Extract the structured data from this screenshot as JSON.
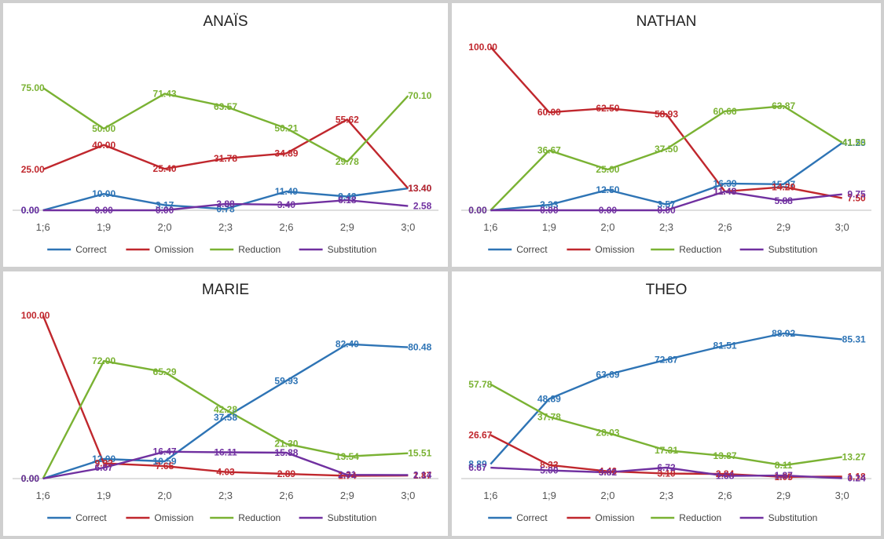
{
  "chart_data": [
    {
      "type": "line",
      "title": "ANAÏS",
      "categories": [
        "1;6",
        "1;9",
        "2;0",
        "2;3",
        "2;6",
        "2;9",
        "3;0"
      ],
      "ylim": [
        0,
        100
      ],
      "grid": false,
      "legend_position": "bottom",
      "series": [
        {
          "name": "Correct",
          "color": "#2e74b5",
          "values": [
            0.0,
            10.0,
            3.17,
            0.78,
            11.49,
            8.43,
            13.4
          ]
        },
        {
          "name": "Omission",
          "color": "#c0272d",
          "values": [
            25.0,
            40.0,
            25.4,
            31.78,
            34.89,
            55.62,
            13.4
          ]
        },
        {
          "name": "Reduction",
          "color": "#7ab233",
          "values": [
            75.0,
            50.0,
            71.43,
            63.57,
            50.21,
            29.78,
            70.1
          ]
        },
        {
          "name": "Substitution",
          "color": "#7030a0",
          "values": [
            0.0,
            0.0,
            0.0,
            3.88,
            3.4,
            6.18,
            2.58
          ]
        }
      ]
    },
    {
      "type": "line",
      "title": "NATHAN",
      "categories": [
        "1;6",
        "1;9",
        "2;0",
        "2;3",
        "2;6",
        "2;9",
        "3;0"
      ],
      "ylim": [
        0,
        100
      ],
      "grid": false,
      "legend_position": "bottom",
      "series": [
        {
          "name": "Correct",
          "color": "#2e74b5",
          "values": [
            0.0,
            3.33,
            12.5,
            3.57,
            16.39,
            15.97,
            41.25
          ]
        },
        {
          "name": "Omission",
          "color": "#c0272d",
          "values": [
            100.0,
            60.0,
            62.5,
            58.93,
            11.48,
            14.29,
            7.5
          ]
        },
        {
          "name": "Reduction",
          "color": "#7ab233",
          "values": [
            0.0,
            36.67,
            25.0,
            37.5,
            60.66,
            63.87,
            41.5
          ]
        },
        {
          "name": "Substitution",
          "color": "#7030a0",
          "values": [
            0.0,
            0.0,
            0.0,
            0.0,
            11.48,
            5.88,
            9.75
          ]
        }
      ]
    },
    {
      "type": "line",
      "title": "MARIE",
      "categories": [
        "1;6",
        "1;9",
        "2;0",
        "2;3",
        "2;6",
        "2;9",
        "3;0"
      ],
      "ylim": [
        0,
        100
      ],
      "grid": false,
      "legend_position": "bottom",
      "series": [
        {
          "name": "Correct",
          "color": "#2e74b5",
          "values": [
            0.0,
            12.0,
            10.59,
            37.58,
            59.93,
            82.4,
            80.48
          ]
        },
        {
          "name": "Omission",
          "color": "#c0272d",
          "values": [
            100.0,
            9.33,
            7.65,
            4.03,
            2.89,
            1.74,
            1.87
          ]
        },
        {
          "name": "Reduction",
          "color": "#7ab233",
          "values": [
            0.0,
            72.0,
            65.29,
            42.28,
            21.3,
            13.54,
            15.51
          ]
        },
        {
          "name": "Substitution",
          "color": "#7030a0",
          "values": [
            0.0,
            6.67,
            16.47,
            16.11,
            15.88,
            2.31,
            2.14
          ]
        }
      ]
    },
    {
      "type": "line",
      "title": "THEO",
      "categories": [
        "1;6",
        "1;9",
        "2;0",
        "2;3",
        "2;6",
        "2;9",
        "3;0"
      ],
      "ylim": [
        0,
        100
      ],
      "grid": false,
      "legend_position": "bottom",
      "series": [
        {
          "name": "Correct",
          "color": "#2e74b5",
          "values": [
            8.89,
            48.89,
            63.69,
            72.87,
            81.51,
            88.92,
            85.31
          ]
        },
        {
          "name": "Omission",
          "color": "#c0272d",
          "values": [
            26.67,
            8.33,
            4.46,
            3.1,
            2.84,
            1.05,
            1.18
          ]
        },
        {
          "name": "Reduction",
          "color": "#7ab233",
          "values": [
            57.78,
            37.78,
            28.03,
            17.31,
            13.87,
            8.11,
            13.27
          ]
        },
        {
          "name": "Substitution",
          "color": "#7030a0",
          "values": [
            6.67,
            5.0,
            3.82,
            6.72,
            1.68,
            1.87,
            0.24
          ]
        }
      ]
    }
  ]
}
